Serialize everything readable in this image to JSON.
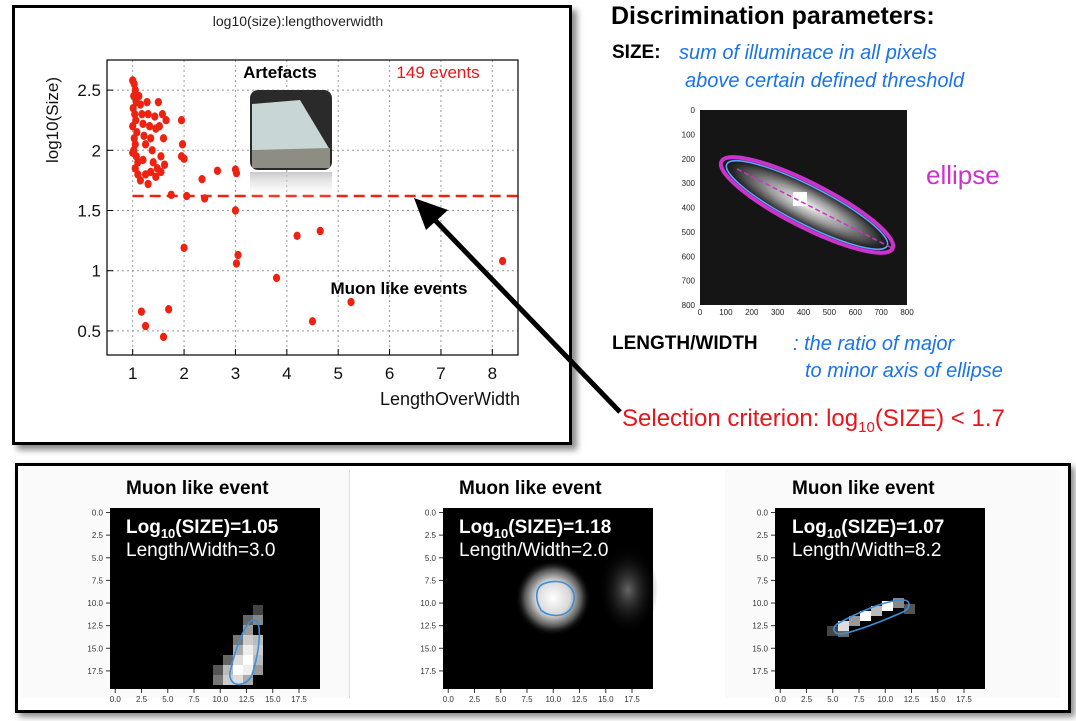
{
  "scatter": {
    "title": "log10(size):lengthoverwidth",
    "ylabel": "log10(Size)",
    "xlabel": "LengthOverWidth",
    "xticks": [
      "1",
      "2",
      "3",
      "4",
      "5",
      "6",
      "7",
      "8"
    ],
    "yticks": [
      "0.5",
      "1",
      "1.5",
      "2",
      "2.5"
    ],
    "artefacts_label": "Artefacts",
    "events_label": "149 events",
    "muon_label": "Muon like events",
    "point_color": "#ee2211",
    "cut_color": "#ee2211"
  },
  "chart_data": {
    "type": "scatter",
    "title": "log10(size):lengthoverwidth",
    "xlabel": "LengthOverWidth",
    "ylabel": "log10(Size)",
    "xlim": [
      0.5,
      8.5
    ],
    "ylim": [
      0.3,
      2.75
    ],
    "cut_y": 1.62,
    "points": [
      [
        1.0,
        2.58
      ],
      [
        1.03,
        2.55
      ],
      [
        1.05,
        2.5
      ],
      [
        1.02,
        2.45
      ],
      [
        1.07,
        2.4
      ],
      [
        1.01,
        2.35
      ],
      [
        1.04,
        2.3
      ],
      [
        1.06,
        2.25
      ],
      [
        1.0,
        2.2
      ],
      [
        1.08,
        2.15
      ],
      [
        1.03,
        2.1
      ],
      [
        1.05,
        2.05
      ],
      [
        1.02,
        2.0
      ],
      [
        1.07,
        1.95
      ],
      [
        1.1,
        1.9
      ],
      [
        1.12,
        2.45
      ],
      [
        1.15,
        2.38
      ],
      [
        1.18,
        2.3
      ],
      [
        1.2,
        2.22
      ],
      [
        1.22,
        2.12
      ],
      [
        1.25,
        2.05
      ],
      [
        1.28,
        2.4
      ],
      [
        1.3,
        2.3
      ],
      [
        1.33,
        2.2
      ],
      [
        1.35,
        2.1
      ],
      [
        1.38,
        2.0
      ],
      [
        1.4,
        1.9
      ],
      [
        1.43,
        2.28
      ],
      [
        1.45,
        2.18
      ],
      [
        1.48,
        1.85
      ],
      [
        1.5,
        2.4
      ],
      [
        1.52,
        2.2
      ],
      [
        1.55,
        1.95
      ],
      [
        1.58,
        2.3
      ],
      [
        1.6,
        2.1
      ],
      [
        1.62,
        1.88
      ],
      [
        1.65,
        2.25
      ],
      [
        1.0,
        1.98
      ],
      [
        1.05,
        1.85
      ],
      [
        1.1,
        1.8
      ],
      [
        1.15,
        1.75
      ],
      [
        1.2,
        1.92
      ],
      [
        1.25,
        1.8
      ],
      [
        1.3,
        1.72
      ],
      [
        1.35,
        1.82
      ],
      [
        1.45,
        1.78
      ],
      [
        1.55,
        1.82
      ],
      [
        1.75,
        1.63
      ],
      [
        1.95,
        2.25
      ],
      [
        1.97,
        2.05
      ],
      [
        1.95,
        1.95
      ],
      [
        2.0,
        1.93
      ],
      [
        2.05,
        1.62
      ],
      [
        2.35,
        1.76
      ],
      [
        2.4,
        1.6
      ],
      [
        2.65,
        1.83
      ],
      [
        3.0,
        1.84
      ],
      [
        3.02,
        1.81
      ],
      [
        3.0,
        1.5
      ],
      [
        2.0,
        1.19
      ],
      [
        3.05,
        1.13
      ],
      [
        3.02,
        1.06
      ],
      [
        1.17,
        0.66
      ],
      [
        1.25,
        0.54
      ],
      [
        1.7,
        0.68
      ],
      [
        1.6,
        0.45
      ],
      [
        3.8,
        0.94
      ],
      [
        4.2,
        1.29
      ],
      [
        4.65,
        1.33
      ],
      [
        4.5,
        0.58
      ],
      [
        5.25,
        0.74
      ],
      [
        8.2,
        1.08
      ]
    ],
    "annotations": [
      "Artefacts",
      "149 events",
      "Muon like events"
    ]
  },
  "right": {
    "heading": "Discrimination parameters:",
    "size_label": "SIZE:",
    "size_desc_1": "sum of illuminace in all pixels",
    "size_desc_2": "above certain defined threshold",
    "ellipse_label": "ellipse",
    "ellipse_xticks": [
      "0",
      "100",
      "200",
      "300",
      "400",
      "500",
      "600",
      "700",
      "800"
    ],
    "ellipse_yticks": [
      "0",
      "100",
      "200",
      "300",
      "400",
      "500",
      "600",
      "700",
      "800"
    ],
    "lw_label": "LENGTH/WIDTH",
    "lw_desc_1": ": the ratio of major",
    "lw_desc_2": "to minor axis of ellipse",
    "selection_prefix": "Selection criterion:  log",
    "selection_sub": "10",
    "selection_suffix": "(SIZE) < 1.7",
    "ellipse_color": "#cc33cc",
    "selection_color": "#e8141e",
    "blue_text_color": "#1a73e8"
  },
  "panels": [
    {
      "title": "Muon like event",
      "size_prefix": "Log",
      "size_sub": "10",
      "size_rest": "(SIZE)=1.05",
      "lw": "Length/Width=3.0"
    },
    {
      "title": "Muon like event",
      "size_prefix": "Log",
      "size_sub": "10",
      "size_rest": "(SIZE)=1.18",
      "lw": "Length/Width=2.0"
    },
    {
      "title": "Muon like event",
      "size_prefix": "Log",
      "size_sub": "10",
      "size_rest": "(SIZE)=1.07",
      "lw": "Length/Width=8.2"
    }
  ],
  "panel_yticks": [
    "0.0",
    "2.5",
    "5.0",
    "7.5",
    "10.0",
    "12.5",
    "15.0",
    "17.5"
  ],
  "panel_xticks": [
    "0.0",
    "2.5",
    "5.0",
    "7.5",
    "10.0",
    "12.5",
    "15.0",
    "17.5"
  ]
}
